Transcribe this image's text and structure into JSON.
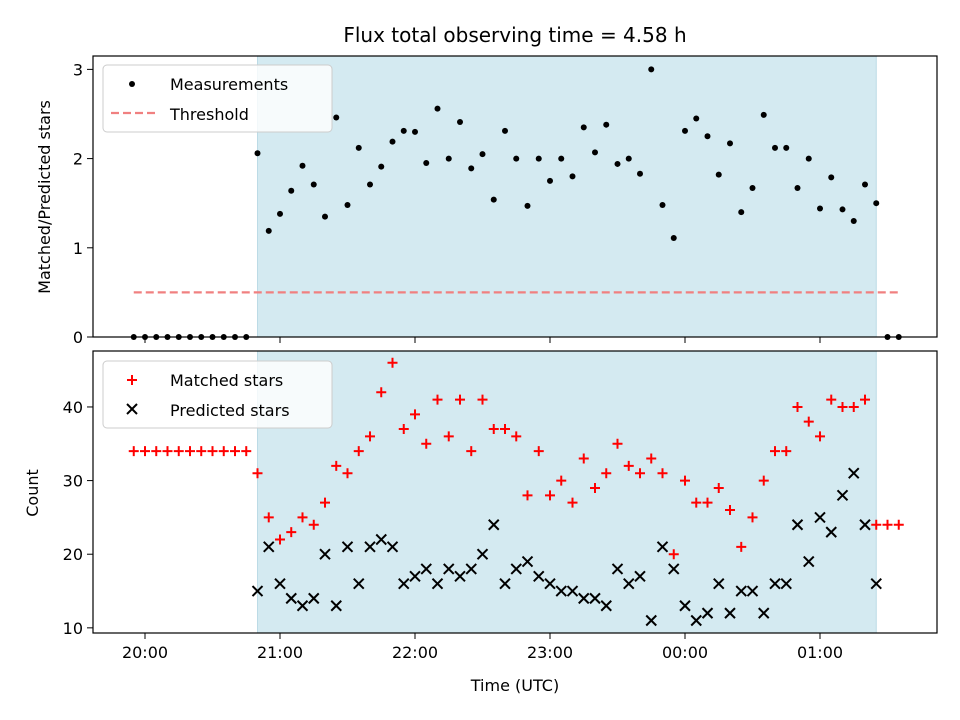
{
  "chart_data": {
    "title": "Flux total observing time = 4.58 h",
    "xlabel": "Time (UTC)",
    "x_ticks": [
      "20:00",
      "21:00",
      "22:00",
      "23:00",
      "00:00",
      "01:00"
    ],
    "observing_window": [
      "20:50",
      "01:25"
    ],
    "colors": {
      "window": "#d4eaf1",
      "measurements": "#000000",
      "threshold": "#f08080",
      "matched": "#ff0000",
      "predicted": "#000000"
    },
    "panels": [
      {
        "type": "scatter",
        "ylabel": "Matched/Predicted stars",
        "ylim": [
          0,
          3.15
        ],
        "y_ticks": [
          0,
          1,
          2,
          3
        ],
        "legend": {
          "placement": "upper-left",
          "entries": [
            "Measurements",
            "Threshold"
          ]
        },
        "threshold": 0.5,
        "threshold_x_range": [
          "19:55",
          "01:35"
        ],
        "measurements": [
          [
            "19:55",
            0
          ],
          [
            "20:00",
            0
          ],
          [
            "20:05",
            0
          ],
          [
            "20:10",
            0
          ],
          [
            "20:15",
            0
          ],
          [
            "20:20",
            0
          ],
          [
            "20:25",
            0
          ],
          [
            "20:30",
            0
          ],
          [
            "20:35",
            0
          ],
          [
            "20:40",
            0
          ],
          [
            "20:45",
            0
          ],
          [
            "20:50",
            2.06
          ],
          [
            "20:55",
            1.19
          ],
          [
            "21:00",
            1.38
          ],
          [
            "21:05",
            1.64
          ],
          [
            "21:10",
            1.92
          ],
          [
            "21:15",
            1.71
          ],
          [
            "21:20",
            1.35
          ],
          [
            "21:25",
            2.46
          ],
          [
            "21:30",
            1.48
          ],
          [
            "21:35",
            2.12
          ],
          [
            "21:40",
            1.71
          ],
          [
            "21:45",
            1.91
          ],
          [
            "21:50",
            2.19
          ],
          [
            "21:55",
            2.31
          ],
          [
            "22:00",
            2.3
          ],
          [
            "22:05",
            1.95
          ],
          [
            "22:10",
            2.56
          ],
          [
            "22:15",
            2.0
          ],
          [
            "22:20",
            2.41
          ],
          [
            "22:25",
            1.89
          ],
          [
            "22:30",
            2.05
          ],
          [
            "22:35",
            1.54
          ],
          [
            "22:40",
            2.31
          ],
          [
            "22:45",
            2.0
          ],
          [
            "22:50",
            1.47
          ],
          [
            "22:55",
            2.0
          ],
          [
            "23:00",
            1.75
          ],
          [
            "23:05",
            2.0
          ],
          [
            "23:10",
            1.8
          ],
          [
            "23:15",
            2.35
          ],
          [
            "23:20",
            2.07
          ],
          [
            "23:25",
            2.38
          ],
          [
            "23:30",
            1.94
          ],
          [
            "23:35",
            2.0
          ],
          [
            "23:40",
            1.83
          ],
          [
            "23:45",
            3.0
          ],
          [
            "23:50",
            1.48
          ],
          [
            "23:55",
            1.11
          ],
          [
            "00:00",
            2.31
          ],
          [
            "00:05",
            2.45
          ],
          [
            "00:10",
            2.25
          ],
          [
            "00:15",
            1.82
          ],
          [
            "00:20",
            2.17
          ],
          [
            "00:25",
            1.4
          ],
          [
            "00:30",
            1.67
          ],
          [
            "00:35",
            2.49
          ],
          [
            "00:40",
            2.12
          ],
          [
            "00:45",
            2.12
          ],
          [
            "00:50",
            1.67
          ],
          [
            "00:55",
            2.0
          ],
          [
            "01:00",
            1.44
          ],
          [
            "01:05",
            1.79
          ],
          [
            "01:10",
            1.43
          ],
          [
            "01:15",
            1.3
          ],
          [
            "01:20",
            1.71
          ],
          [
            "01:25",
            1.5
          ],
          [
            "01:30",
            0
          ],
          [
            "01:35",
            0
          ]
        ]
      },
      {
        "type": "scatter",
        "ylabel": "Count",
        "ylim": [
          9.3,
          47.6
        ],
        "y_ticks": [
          10,
          20,
          30,
          40
        ],
        "legend": {
          "placement": "upper-left",
          "entries": [
            "Matched stars",
            "Predicted stars"
          ]
        },
        "matched": [
          [
            "19:55",
            34
          ],
          [
            "20:00",
            34
          ],
          [
            "20:05",
            34
          ],
          [
            "20:10",
            34
          ],
          [
            "20:15",
            34
          ],
          [
            "20:20",
            34
          ],
          [
            "20:25",
            34
          ],
          [
            "20:30",
            34
          ],
          [
            "20:35",
            34
          ],
          [
            "20:40",
            34
          ],
          [
            "20:45",
            34
          ],
          [
            "20:50",
            31
          ],
          [
            "20:55",
            25
          ],
          [
            "21:00",
            22
          ],
          [
            "21:05",
            23
          ],
          [
            "21:10",
            25
          ],
          [
            "21:15",
            24
          ],
          [
            "21:20",
            27
          ],
          [
            "21:25",
            32
          ],
          [
            "21:30",
            31
          ],
          [
            "21:35",
            34
          ],
          [
            "21:40",
            36
          ],
          [
            "21:45",
            42
          ],
          [
            "21:50",
            46
          ],
          [
            "21:55",
            37
          ],
          [
            "22:00",
            39
          ],
          [
            "22:05",
            35
          ],
          [
            "22:10",
            41
          ],
          [
            "22:15",
            36
          ],
          [
            "22:20",
            41
          ],
          [
            "22:25",
            34
          ],
          [
            "22:30",
            41
          ],
          [
            "22:35",
            37
          ],
          [
            "22:40",
            37
          ],
          [
            "22:45",
            36
          ],
          [
            "22:50",
            28
          ],
          [
            "22:55",
            34
          ],
          [
            "23:00",
            28
          ],
          [
            "23:05",
            30
          ],
          [
            "23:10",
            27
          ],
          [
            "23:15",
            33
          ],
          [
            "23:20",
            29
          ],
          [
            "23:25",
            31
          ],
          [
            "23:30",
            35
          ],
          [
            "23:35",
            32
          ],
          [
            "23:40",
            31
          ],
          [
            "23:45",
            33
          ],
          [
            "23:50",
            31
          ],
          [
            "23:55",
            20
          ],
          [
            "00:00",
            30
          ],
          [
            "00:05",
            27
          ],
          [
            "00:10",
            27
          ],
          [
            "00:15",
            29
          ],
          [
            "00:20",
            26
          ],
          [
            "00:25",
            21
          ],
          [
            "00:30",
            25
          ],
          [
            "00:35",
            30
          ],
          [
            "00:40",
            34
          ],
          [
            "00:45",
            34
          ],
          [
            "00:50",
            40
          ],
          [
            "00:55",
            38
          ],
          [
            "01:00",
            36
          ],
          [
            "01:05",
            41
          ],
          [
            "01:10",
            40
          ],
          [
            "01:15",
            40
          ],
          [
            "01:20",
            41
          ],
          [
            "01:25",
            24
          ],
          [
            "01:30",
            24
          ],
          [
            "01:35",
            24
          ]
        ],
        "predicted": [
          [
            "20:50",
            15
          ],
          [
            "20:55",
            21
          ],
          [
            "21:00",
            16
          ],
          [
            "21:05",
            14
          ],
          [
            "21:10",
            13
          ],
          [
            "21:15",
            14
          ],
          [
            "21:20",
            20
          ],
          [
            "21:25",
            13
          ],
          [
            "21:30",
            21
          ],
          [
            "21:35",
            16
          ],
          [
            "21:40",
            21
          ],
          [
            "21:45",
            22
          ],
          [
            "21:50",
            21
          ],
          [
            "21:55",
            16
          ],
          [
            "22:00",
            17
          ],
          [
            "22:05",
            18
          ],
          [
            "22:10",
            16
          ],
          [
            "22:15",
            18
          ],
          [
            "22:20",
            17
          ],
          [
            "22:25",
            18
          ],
          [
            "22:30",
            20
          ],
          [
            "22:35",
            24
          ],
          [
            "22:40",
            16
          ],
          [
            "22:45",
            18
          ],
          [
            "22:50",
            19
          ],
          [
            "22:55",
            17
          ],
          [
            "23:00",
            16
          ],
          [
            "23:05",
            15
          ],
          [
            "23:10",
            15
          ],
          [
            "23:15",
            14
          ],
          [
            "23:20",
            14
          ],
          [
            "23:25",
            13
          ],
          [
            "23:30",
            18
          ],
          [
            "23:35",
            16
          ],
          [
            "23:40",
            17
          ],
          [
            "23:45",
            11
          ],
          [
            "23:50",
            21
          ],
          [
            "23:55",
            18
          ],
          [
            "00:00",
            13
          ],
          [
            "00:05",
            11
          ],
          [
            "00:10",
            12
          ],
          [
            "00:15",
            16
          ],
          [
            "00:20",
            12
          ],
          [
            "00:25",
            15
          ],
          [
            "00:30",
            15
          ],
          [
            "00:35",
            12
          ],
          [
            "00:40",
            16
          ],
          [
            "00:45",
            16
          ],
          [
            "00:50",
            24
          ],
          [
            "00:55",
            19
          ],
          [
            "01:00",
            25
          ],
          [
            "01:05",
            23
          ],
          [
            "01:10",
            28
          ],
          [
            "01:15",
            31
          ],
          [
            "01:20",
            24
          ],
          [
            "01:25",
            16
          ]
        ]
      }
    ]
  }
}
